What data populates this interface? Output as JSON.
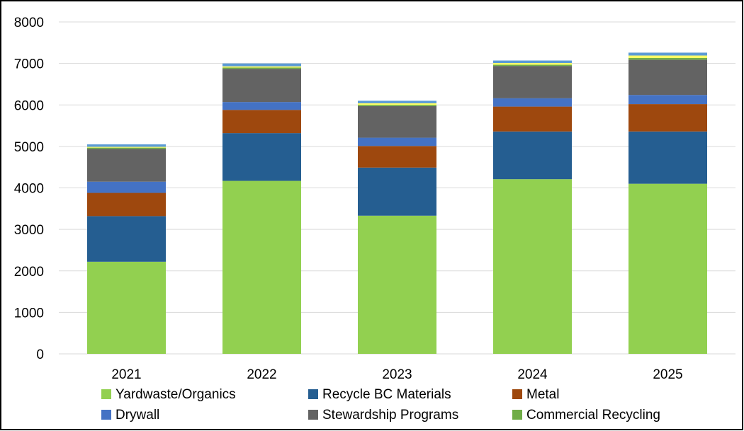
{
  "chart_data": {
    "type": "bar",
    "stacked": true,
    "title": "",
    "xlabel": "",
    "ylabel": "",
    "categories": [
      "2021",
      "2022",
      "2023",
      "2024",
      "2025"
    ],
    "ylim": [
      0,
      8000
    ],
    "yticks": [
      0,
      1000,
      2000,
      3000,
      4000,
      5000,
      6000,
      7000,
      8000
    ],
    "grid": true,
    "legend_position": "bottom",
    "series": [
      {
        "name": "Yardwaste/Organics",
        "color": "#92d050",
        "values": [
          2220,
          4170,
          3330,
          4210,
          4100
        ]
      },
      {
        "name": "Recycle BC Materials",
        "color": "#255e91",
        "values": [
          1100,
          1150,
          1160,
          1150,
          1260
        ]
      },
      {
        "name": "Metal",
        "color": "#9e480e",
        "values": [
          560,
          560,
          520,
          600,
          660
        ]
      },
      {
        "name": "Drywall",
        "color": "#4472c4",
        "values": [
          270,
          190,
          200,
          200,
          220
        ]
      },
      {
        "name": "Stewardship Programs",
        "color": "#636363",
        "values": [
          790,
          800,
          760,
          780,
          850
        ]
      },
      {
        "name": "Commercial Recycling",
        "color": "#70ad47",
        "values": [
          30,
          30,
          30,
          30,
          40
        ]
      },
      {
        "name": "",
        "color": "#ffff66",
        "values": [
          20,
          30,
          40,
          40,
          60
        ]
      },
      {
        "name": "",
        "color": "#5b9bd5",
        "values": [
          60,
          70,
          60,
          60,
          70
        ]
      }
    ]
  }
}
